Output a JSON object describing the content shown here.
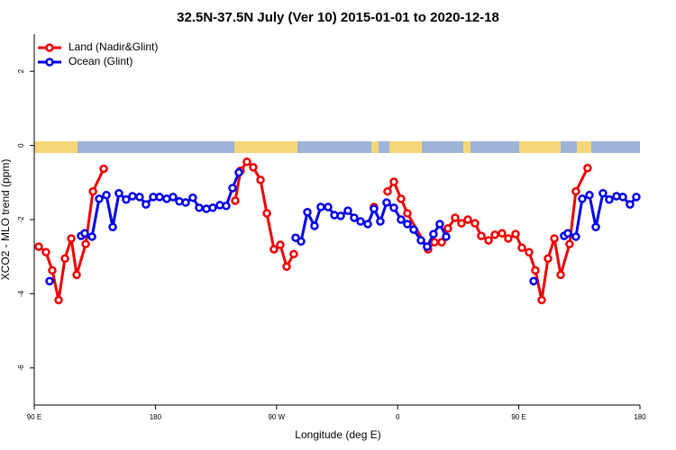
{
  "chart_data": {
    "type": "line",
    "title": "32.5N-37.5N July (Ver 10)   2015-01-01 to 2020-12-18",
    "xlabel": "Longitude (deg E)",
    "ylabel": "XCO2 - MLO trend (ppm)",
    "xlim": [
      90,
      540
    ],
    "ylim": [
      -7,
      3
    ],
    "xticks": [
      {
        "value": 90,
        "label": "90 E"
      },
      180,
      {
        "value": 270,
        "label": "90 W"
      },
      {
        "value": 360,
        "label": "0"
      },
      {
        "value": 450,
        "label": "90 E"
      },
      {
        "value": 540,
        "label": "180"
      }
    ],
    "yticks": [
      2,
      0,
      -2,
      -4,
      -6
    ],
    "legend": "top-left",
    "series": [
      {
        "name": "Land (Nadir&Glint)",
        "color": "#ee0000",
        "x": [
          93.3,
          98.7,
          103.4,
          108.1,
          112.8,
          117.5,
          121.5,
          128.2,
          133.6,
          141.6,
          null,
          239.3,
          243.3,
          248.0,
          252.7,
          258.1,
          262.8,
          268.1,
          272.8,
          277.5,
          282.8,
          null,
          342.4,
          null,
          352.5,
          357.2,
          362.5,
          367.2,
          382.6,
          387.3,
          392.7,
          397.3,
          402.7,
          407.4,
          412.1,
          417.4,
          422.1,
          427.5,
          432.2,
          437.5,
          442.2,
          447.6,
          452.3,
          457.6,
          462.3,
          467.0,
          471.7,
          476.4,
          481.1,
          487.7,
          492.4,
          501.1
        ],
        "values": [
          -2.73,
          -2.88,
          -3.37,
          -4.17,
          -3.05,
          -2.51,
          -3.49,
          -2.66,
          -1.24,
          -0.63,
          null,
          -1.49,
          -0.68,
          -0.44,
          -0.59,
          -0.93,
          -1.83,
          -2.8,
          -2.68,
          -3.27,
          -2.93,
          null,
          -1.66,
          null,
          -1.24,
          -0.98,
          -1.44,
          -1.83,
          -2.8,
          -2.61,
          -2.61,
          -2.24,
          -1.95,
          -2.1,
          -2.0,
          -2.1,
          -2.44,
          -2.56,
          -2.41,
          -2.37,
          -2.51,
          -2.39,
          -2.76,
          -2.88,
          -3.37,
          -4.17,
          -3.05,
          -2.51,
          -3.49,
          -2.66,
          -1.24,
          -0.61
        ]
      },
      {
        "name": "Ocean (Glint)",
        "color": "#0000ee",
        "x": [
          101.4,
          null,
          124.8,
          127.5,
          132.9,
          138.2,
          143.6,
          148.3,
          152.9,
          158.3,
          163.0,
          168.3,
          173.0,
          178.4,
          183.1,
          188.4,
          193.1,
          197.8,
          202.5,
          207.8,
          212.5,
          217.9,
          222.6,
          227.9,
          232.6,
          237.3,
          242.0,
          null,
          284.2,
          288.2,
          292.9,
          298.2,
          302.9,
          308.3,
          313.0,
          317.7,
          323.0,
          327.7,
          332.4,
          337.8,
          342.4,
          347.1,
          351.8,
          357.2,
          362.5,
          367.2,
          371.9,
          377.3,
          381.9,
          386.6,
          391.3,
          396.0,
          null,
          461.0,
          null,
          483.7,
          486.4,
          492.4,
          497.1,
          502.5,
          507.2,
          512.5,
          517.2,
          522.6,
          527.3,
          532.6,
          537.3
        ],
        "values": [
          -3.66,
          null,
          -2.44,
          -2.37,
          -2.46,
          -1.44,
          -1.34,
          -2.2,
          -1.29,
          -1.46,
          -1.37,
          -1.39,
          -1.59,
          -1.39,
          -1.39,
          -1.44,
          -1.39,
          -1.51,
          -1.54,
          -1.41,
          -1.68,
          -1.71,
          -1.68,
          -1.61,
          -1.63,
          -1.15,
          -0.73,
          null,
          -2.49,
          -2.59,
          -1.8,
          -2.17,
          -1.66,
          -1.66,
          -1.88,
          -1.9,
          -1.76,
          -1.95,
          -2.05,
          -2.12,
          -1.71,
          -2.05,
          -1.54,
          -1.68,
          -2.0,
          -2.12,
          -2.27,
          -2.56,
          -2.73,
          -2.39,
          -2.12,
          -2.46,
          null,
          -3.66,
          null,
          -2.44,
          -2.37,
          -2.46,
          -1.44,
          -1.34,
          -2.2,
          -1.29,
          -1.46,
          -1.37,
          -1.39,
          -1.59,
          -1.39
        ]
      }
    ]
  }
}
